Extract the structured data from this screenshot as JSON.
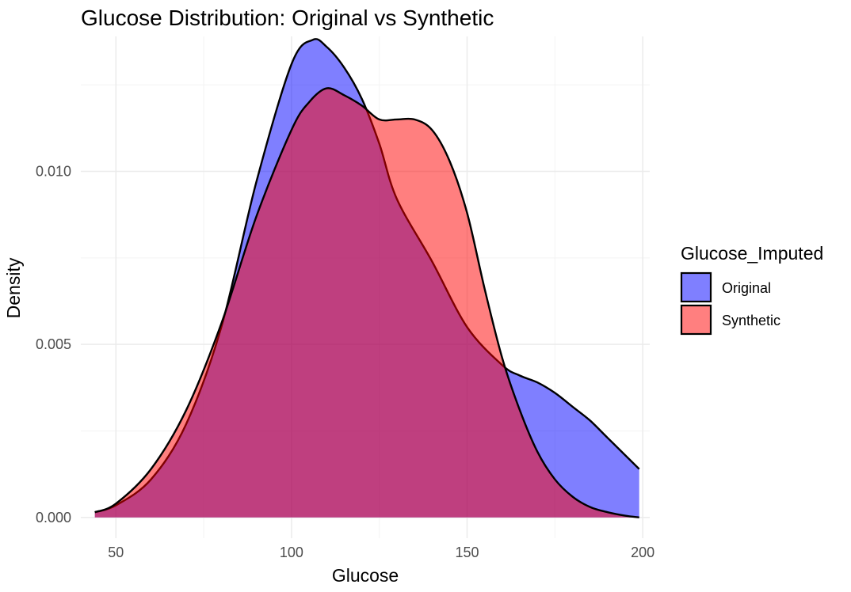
{
  "chart_data": {
    "type": "area",
    "title": "Glucose Distribution: Original vs Synthetic",
    "xlabel": "Glucose",
    "ylabel": "Density",
    "xlim": [
      40,
      202
    ],
    "ylim": [
      -0.0006,
      0.0139
    ],
    "x_ticks": [
      50,
      100,
      150,
      200
    ],
    "x_tick_labels": [
      "50",
      "100",
      "150",
      "200"
    ],
    "x_minor_ticks": [
      75,
      125,
      175
    ],
    "y_ticks": [
      0.0,
      0.005,
      0.01
    ],
    "y_tick_labels": [
      "0.000",
      "0.005",
      "0.010"
    ],
    "y_minor_ticks": [
      0.0025,
      0.0075,
      0.0125
    ],
    "grid": true,
    "legend": {
      "title": "Glucose_Imputed",
      "position": "right",
      "entries": [
        "Original",
        "Synthetic"
      ]
    },
    "series": [
      {
        "name": "Original",
        "color": "#0000FF",
        "fill_opacity": 0.5,
        "x": [
          44,
          50,
          60,
          70,
          80,
          90,
          100,
          106,
          110,
          115,
          120,
          125,
          130,
          140,
          150,
          160,
          165,
          170,
          175,
          180,
          185,
          190,
          195,
          199
        ],
        "y": [
          0.00015,
          0.00035,
          0.0011,
          0.0027,
          0.0055,
          0.0097,
          0.0131,
          0.0138,
          0.0136,
          0.013,
          0.0121,
          0.0108,
          0.0092,
          0.0074,
          0.0055,
          0.0044,
          0.0041,
          0.0039,
          0.0036,
          0.0032,
          0.0028,
          0.0023,
          0.0018,
          0.0014
        ]
      },
      {
        "name": "Synthetic",
        "color": "#FF0000",
        "fill_opacity": 0.5,
        "x": [
          44,
          50,
          60,
          70,
          80,
          90,
          100,
          105,
          110,
          115,
          120,
          125,
          130,
          135,
          140,
          145,
          150,
          155,
          160,
          165,
          170,
          175,
          180,
          185,
          190,
          195,
          199
        ],
        "y": [
          0.00015,
          0.0004,
          0.0014,
          0.0031,
          0.0056,
          0.0087,
          0.0112,
          0.012,
          0.0124,
          0.0122,
          0.0119,
          0.0115,
          0.0115,
          0.0115,
          0.0112,
          0.0103,
          0.0088,
          0.0066,
          0.0046,
          0.0031,
          0.0019,
          0.0011,
          0.0006,
          0.0003,
          0.00015,
          5e-05,
          0.0
        ]
      }
    ]
  }
}
